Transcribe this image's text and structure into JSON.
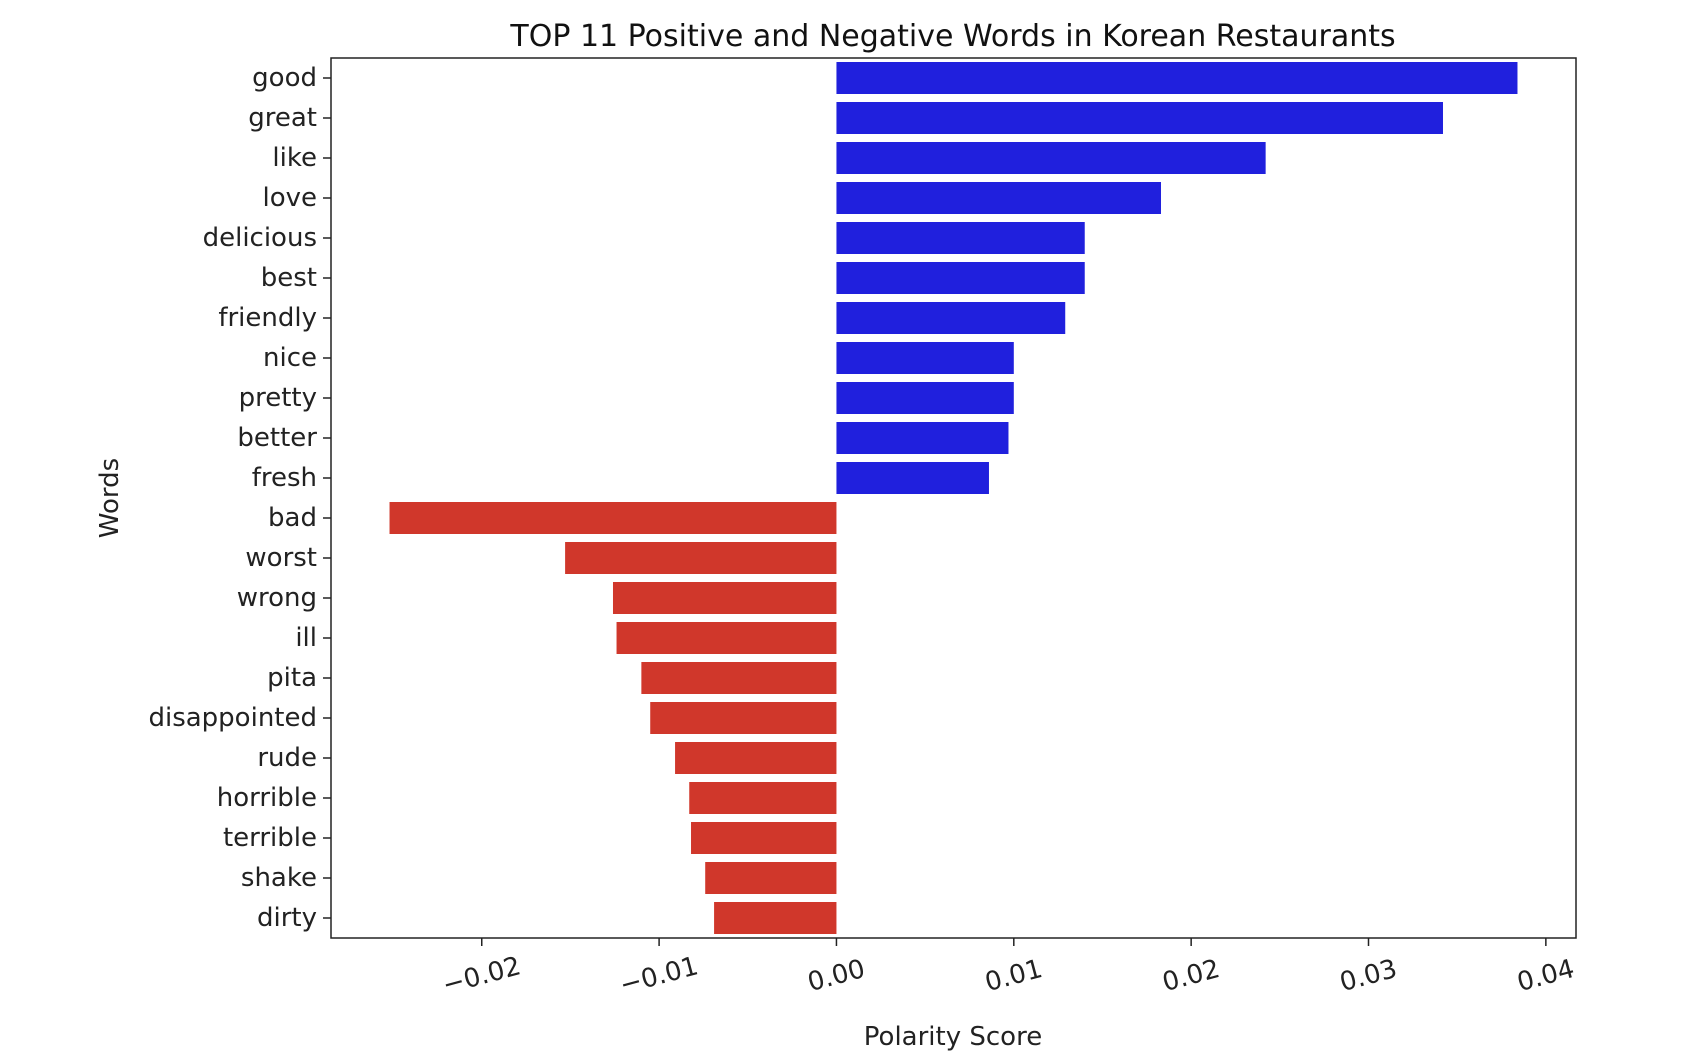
{
  "chart_data": {
    "type": "bar",
    "orientation": "horizontal",
    "title": "TOP 11 Positive and Negative Words in Korean Restaurants",
    "xlabel": "Polarity Score",
    "ylabel": "Words",
    "xlim": [
      -0.0285,
      0.0417
    ],
    "xticks": [
      -0.02,
      -0.01,
      0.0,
      0.01,
      0.02,
      0.03,
      0.04
    ],
    "xtick_labels": [
      "−0.02",
      "−0.01",
      "0.00",
      "0.01",
      "0.02",
      "0.03",
      "0.04"
    ],
    "grid": false,
    "colors": {
      "positive": "#2020dd",
      "negative": "#d0372b"
    },
    "categories": [
      "good",
      "great",
      "like",
      "love",
      "delicious",
      "best",
      "friendly",
      "nice",
      "pretty",
      "better",
      "fresh",
      "bad",
      "worst",
      "wrong",
      "ill",
      "pita",
      "disappointed",
      "rude",
      "horrible",
      "terrible",
      "shake",
      "dirty"
    ],
    "values": [
      0.0384,
      0.0342,
      0.0242,
      0.0183,
      0.014,
      0.014,
      0.0129,
      0.01,
      0.01,
      0.0097,
      0.0086,
      -0.0252,
      -0.0153,
      -0.0126,
      -0.0124,
      -0.011,
      -0.0105,
      -0.0091,
      -0.0083,
      -0.0082,
      -0.0074,
      -0.0069
    ]
  }
}
